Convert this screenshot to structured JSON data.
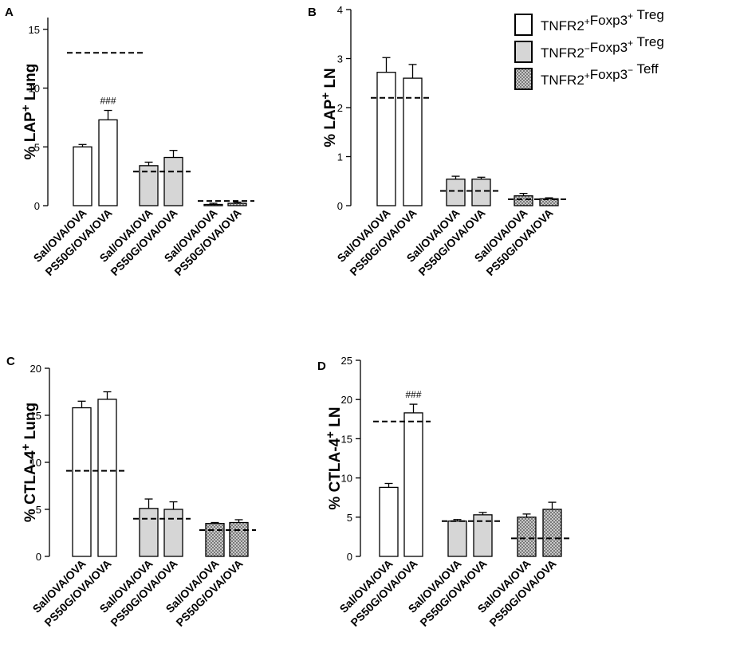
{
  "chart_data": [
    {
      "type": "bar",
      "panel": "A",
      "ylabel_main": "% LAP",
      "ylabel_sup": "+",
      "ylabel_tail": " Lung",
      "yticks": [
        "0",
        "5",
        "10",
        "15"
      ],
      "ylim": [
        0,
        16
      ],
      "categories": [
        "Sal/OVA/OVA",
        "PS50G/OVA/OVA",
        "Sal/OVA/OVA",
        "PS50G/OVA/OVA",
        "Sal/OVA/OVA",
        "PS50G/OVA/OVA"
      ],
      "groups": [
        "TNFR2+Foxp3+ Treg",
        "TNFR2-Foxp3+ Treg",
        "TNFR2+Foxp3- Teff"
      ],
      "values": [
        5.0,
        7.3,
        3.4,
        4.1,
        0.1,
        0.2
      ],
      "errors": [
        0.2,
        0.8,
        0.3,
        0.6,
        0.1,
        0.1
      ],
      "baselines": [
        13.0,
        2.9,
        0.4
      ],
      "annotations": [
        {
          "bar": 1,
          "text": "###"
        }
      ]
    },
    {
      "type": "bar",
      "panel": "B",
      "ylabel_main": "% LAP",
      "ylabel_sup": "+",
      "ylabel_tail": " LN",
      "yticks": [
        "0",
        "1",
        "2",
        "3",
        "4"
      ],
      "ylim": [
        0,
        4
      ],
      "categories": [
        "Sal/OVA/OVA",
        "PS50G/OVA/OVA",
        "Sal/OVA/OVA",
        "PS50G/OVA/OVA",
        "Sal/OVA/OVA",
        "PS50G/OVA/OVA"
      ],
      "groups": [
        "TNFR2+Foxp3+ Treg",
        "TNFR2-Foxp3+ Treg",
        "TNFR2+Foxp3- Teff"
      ],
      "values": [
        2.72,
        2.6,
        0.54,
        0.54,
        0.2,
        0.14
      ],
      "errors": [
        0.3,
        0.28,
        0.06,
        0.04,
        0.05,
        0.02
      ],
      "baselines": [
        2.2,
        0.3,
        0.13
      ],
      "annotations": []
    },
    {
      "type": "bar",
      "panel": "C",
      "ylabel_main": "% CTLA-4",
      "ylabel_sup": "+",
      "ylabel_tail": " Lung",
      "yticks": [
        "0",
        "5",
        "10",
        "15",
        "20"
      ],
      "ylim": [
        0,
        20
      ],
      "categories": [
        "Sal/OVA/OVA",
        "PS50G/OVA/OVA",
        "Sal/OVA/OVA",
        "PS50G/OVA/OVA",
        "Sal/OVA/OVA",
        "PS50G/OVA/OVA"
      ],
      "groups": [
        "TNFR2+Foxp3+ Treg",
        "TNFR2-Foxp3+ Treg",
        "TNFR2+Foxp3- Teff"
      ],
      "values": [
        15.8,
        16.7,
        5.1,
        5.0,
        3.5,
        3.6
      ],
      "errors": [
        0.7,
        0.8,
        1.0,
        0.8,
        0.1,
        0.3
      ],
      "baselines": [
        9.1,
        4.0,
        2.8
      ],
      "annotations": []
    },
    {
      "type": "bar",
      "panel": "D",
      "ylabel_main": "% CTLA-4",
      "ylabel_sup": "+",
      "ylabel_tail": " LN",
      "yticks": [
        "0",
        "5",
        "10",
        "15",
        "20",
        "25"
      ],
      "ylim": [
        0,
        25
      ],
      "categories": [
        "Sal/OVA/OVA",
        "PS50G/OVA/OVA",
        "Sal/OVA/OVA",
        "PS50G/OVA/OVA",
        "Sal/OVA/OVA",
        "PS50G/OVA/OVA"
      ],
      "groups": [
        "TNFR2+Foxp3+ Treg",
        "TNFR2-Foxp3+ Treg",
        "TNFR2+Foxp3- Teff"
      ],
      "values": [
        8.8,
        18.3,
        4.5,
        5.3,
        5.0,
        6.0
      ],
      "errors": [
        0.5,
        1.1,
        0.2,
        0.3,
        0.4,
        0.9
      ],
      "baselines": [
        17.2,
        4.5,
        2.3
      ],
      "annotations": [
        {
          "bar": 1,
          "text": "###"
        }
      ]
    }
  ],
  "legend": [
    {
      "pre": "TNFR2",
      "sup1": "+",
      "mid": "Foxp3",
      "sup2": "+",
      "post": " Treg",
      "fill": "white"
    },
    {
      "pre": "TNFR2",
      "sup1": "−",
      "mid": "Foxp3",
      "sup2": "+",
      "post": " Treg",
      "fill": "gray"
    },
    {
      "pre": "TNFR2",
      "sup1": "+",
      "mid": "Foxp3",
      "sup2": "−",
      "post": " Teff",
      "fill": "hatch"
    }
  ],
  "colors": {
    "white_bar": "#ffffff",
    "gray_bar": "#d6d6d6",
    "hatch_dark": "#7a7a7a",
    "hatch_light": "#c9c9c9",
    "axis": "#000000"
  }
}
